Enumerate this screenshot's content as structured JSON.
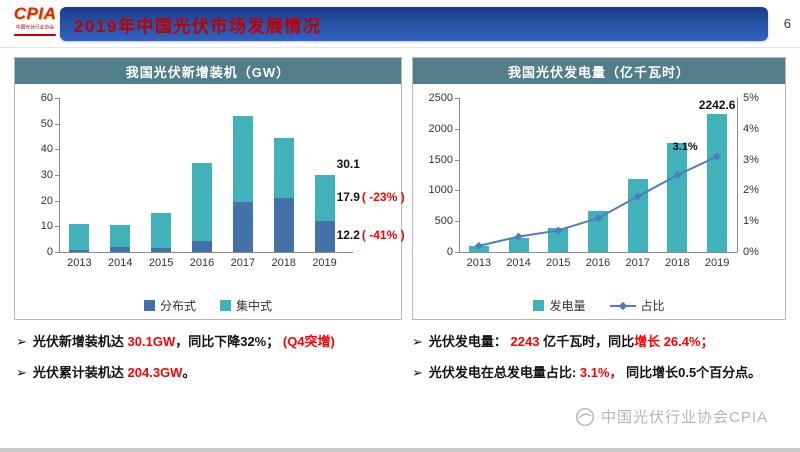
{
  "header": {
    "logo": {
      "brand": "CPIA",
      "subtitle": "中国光伏行业协会"
    },
    "title": "2019年中国光伏市场发展情况",
    "page_number": "6"
  },
  "chart_data": [
    {
      "type": "bar",
      "stacked": true,
      "title": "我国光伏新增装机（GW）",
      "categories": [
        "2013",
        "2014",
        "2015",
        "2016",
        "2017",
        "2018",
        "2019"
      ],
      "series": [
        {
          "name": "分布式",
          "color": "#4472a8",
          "values": [
            0.8,
            2.1,
            1.4,
            4.2,
            19.4,
            21.0,
            12.2
          ]
        },
        {
          "name": "集中式",
          "color": "#41b1ba",
          "values": [
            10.2,
            8.5,
            13.7,
            30.3,
            33.6,
            23.3,
            17.9
          ]
        }
      ],
      "ylim": [
        0,
        60
      ],
      "yticks": [
        0,
        10,
        20,
        30,
        40,
        50,
        60
      ],
      "grid": false,
      "legend_position": "bottom",
      "annotations": {
        "total": {
          "text": "30.1"
        },
        "top_segment": {
          "text": "17.9",
          "note": "( -23% )",
          "note_color": "#ff0000"
        },
        "bottom_segment": {
          "text": "12.2",
          "note": "( -41% )",
          "note_color": "#ff0000"
        }
      }
    },
    {
      "type": "bar+line",
      "title": "我国光伏发电量（亿千瓦时）",
      "categories": [
        "2013",
        "2014",
        "2015",
        "2016",
        "2017",
        "2018",
        "2019"
      ],
      "bar_series": {
        "name": "发电量",
        "color": "#41b1ba",
        "values": [
          91,
          235,
          392,
          662,
          1182,
          1775,
          2242.6
        ]
      },
      "line_series": {
        "name": "占比",
        "color": "#4f7dbf",
        "values": [
          0.2,
          0.5,
          0.7,
          1.1,
          1.8,
          2.5,
          3.1
        ],
        "unit": "%"
      },
      "ylim_left": [
        0,
        2500
      ],
      "yticks_left": [
        0,
        500,
        1000,
        1500,
        2000,
        2500
      ],
      "ylim_right": [
        0,
        5
      ],
      "yticks_right": [
        0,
        1,
        2,
        3,
        4,
        5
      ],
      "ytick_right_suffix": "%",
      "grid": false,
      "legend_position": "bottom",
      "bar_label": {
        "text": "2242.6"
      },
      "point_label": {
        "text": "3.1%"
      }
    }
  ],
  "bullets": {
    "left": [
      {
        "marker": "➢",
        "parts": [
          {
            "text": "光伏新增装机达 ",
            "red": false
          },
          {
            "text": "30.1GW",
            "red": true
          },
          {
            "text": "，同比下降32%； ",
            "red": false
          },
          {
            "text": "(Q4突增)",
            "red": true
          }
        ]
      },
      {
        "marker": "➢",
        "parts": [
          {
            "text": "光伏累计装机达 ",
            "red": false
          },
          {
            "text": "204.3GW",
            "red": true
          },
          {
            "text": "。",
            "red": false
          }
        ]
      }
    ],
    "right": [
      {
        "marker": "➢",
        "parts": [
          {
            "text": "光伏发电量： ",
            "red": false
          },
          {
            "text": "2243 ",
            "red": true
          },
          {
            "text": "亿千瓦时，同比",
            "red": false
          },
          {
            "text": "增长 26.4%；",
            "red": true
          }
        ]
      },
      {
        "marker": "➢",
        "parts": [
          {
            "text": "光伏发电在总发电量占比: ",
            "red": false
          },
          {
            "text": "3.1%，",
            "red": true
          },
          {
            "text": " 同比增长0.5个百分点。",
            "red": false
          }
        ]
      }
    ]
  },
  "watermark": {
    "text": "中国光伏行业协会CPIA"
  },
  "colors": {
    "title_red": "#c00000",
    "highlight_red": "#ff0000",
    "panel_header": "#517e89",
    "bar_blue": "#4472a8",
    "bar_teal": "#41b1ba",
    "line_blue": "#4f7dbf"
  }
}
